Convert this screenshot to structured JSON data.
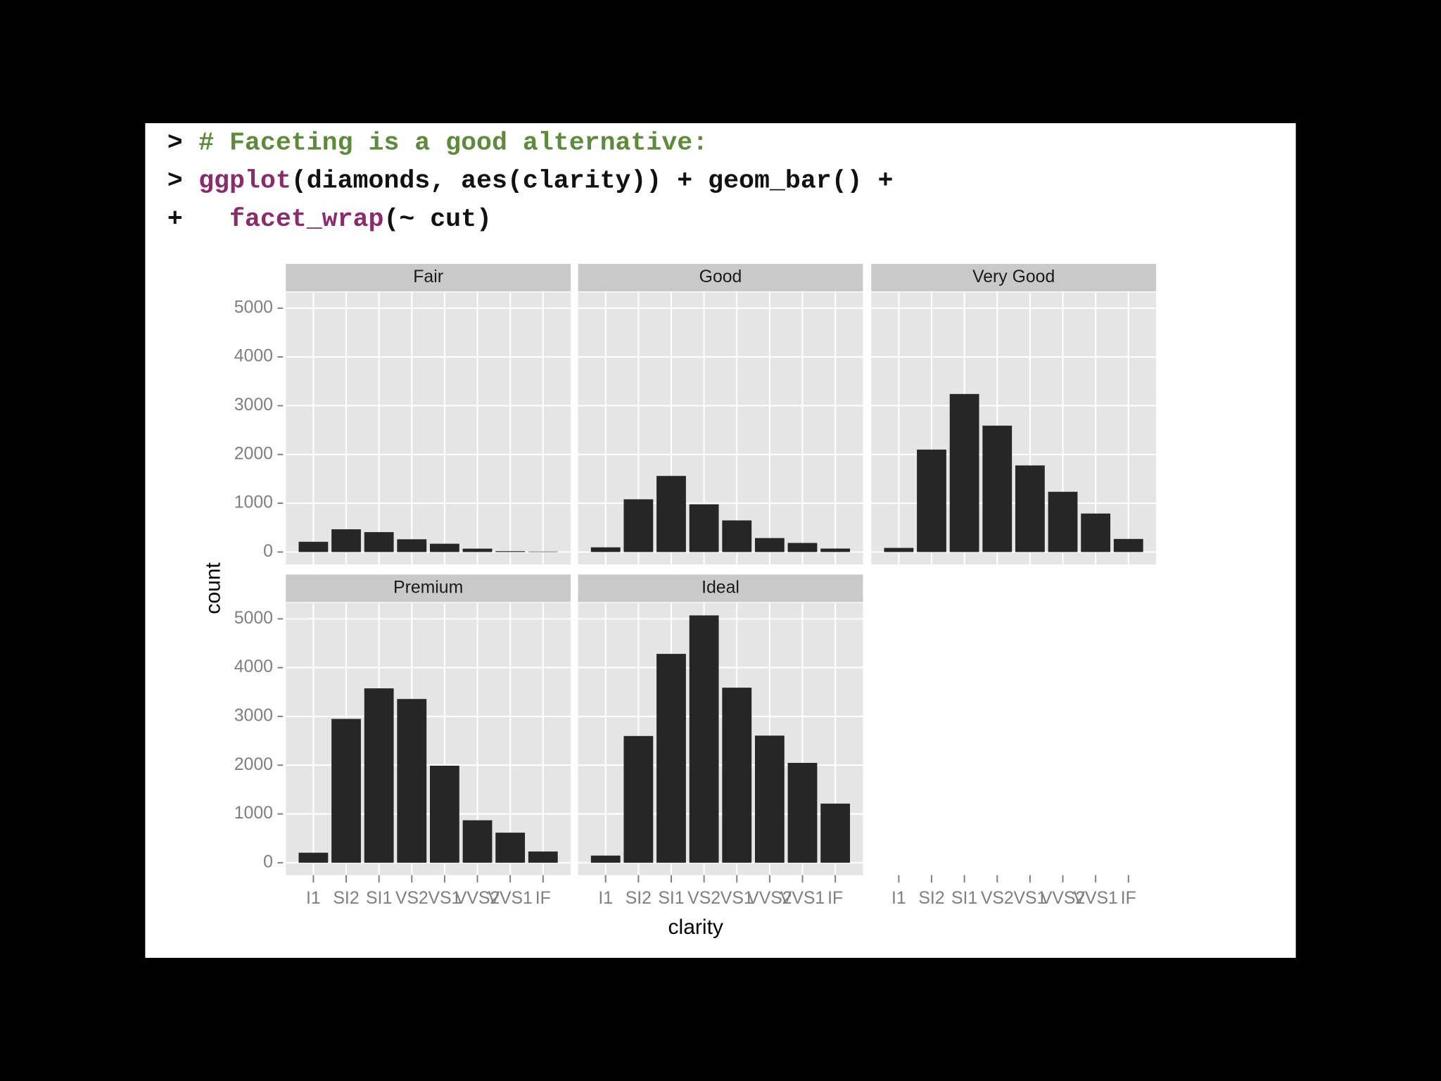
{
  "code": [
    {
      "prompt": ">",
      "segments": [
        {
          "text": "# Faceting is a good alternative:",
          "color": "#5e8a3c"
        }
      ]
    },
    {
      "prompt": ">",
      "segments": [
        {
          "text": "ggplot",
          "color": "#8a2b6e"
        },
        {
          "text": "(diamonds, aes(clarity)) + geom_bar() +",
          "color": "#111111"
        }
      ]
    },
    {
      "prompt": "+",
      "segments": [
        {
          "text": "  facet_wrap",
          "color": "#8a2b6e"
        },
        {
          "text": "(~ cut)",
          "color": "#111111"
        }
      ]
    }
  ],
  "chart_data": {
    "type": "bar",
    "xlabel": "clarity",
    "ylabel": "count",
    "color": "#262626",
    "categories": [
      "I1",
      "SI2",
      "SI1",
      "VS2",
      "VS1",
      "VVS2",
      "VVS1",
      "IF"
    ],
    "ylim": [
      -254,
      5325
    ],
    "yticks": [
      0,
      1000,
      2000,
      3000,
      4000,
      5000
    ],
    "grid": true,
    "panels": [
      {
        "title": "Fair",
        "values": [
          210,
          466,
          408,
          261,
          170,
          69,
          17,
          9
        ]
      },
      {
        "title": "Good",
        "values": [
          96,
          1081,
          1560,
          978,
          648,
          286,
          186,
          71
        ]
      },
      {
        "title": "Very Good",
        "values": [
          84,
          2100,
          3240,
          2591,
          1775,
          1235,
          789,
          268
        ]
      },
      {
        "title": "Premium",
        "values": [
          205,
          2949,
          3575,
          3357,
          1989,
          870,
          616,
          230
        ]
      },
      {
        "title": "Ideal",
        "values": [
          146,
          2598,
          4282,
          5071,
          3589,
          2606,
          2047,
          1212
        ]
      }
    ]
  }
}
